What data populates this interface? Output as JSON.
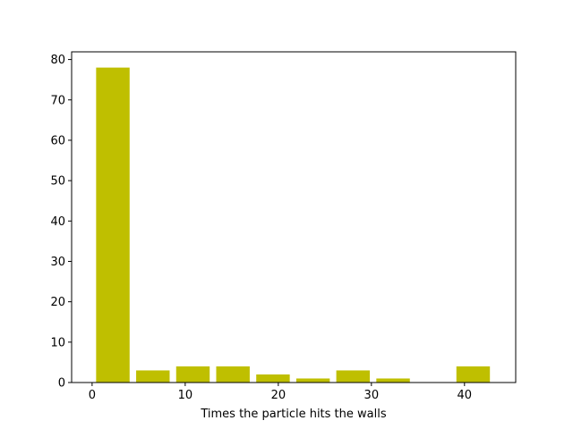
{
  "chart_data": {
    "type": "bar",
    "title": "",
    "xlabel": "Times the particle hits the walls",
    "ylabel": "",
    "xlim": [
      -2.2,
      45.5
    ],
    "ylim": [
      0,
      81.9
    ],
    "xticks": [
      0,
      10,
      20,
      30,
      40
    ],
    "yticks": [
      0,
      10,
      20,
      30,
      40,
      50,
      60,
      70,
      80
    ],
    "bar_color": "#bfbf00",
    "bins": [
      {
        "start": 0.43,
        "end": 4.03,
        "value": 78
      },
      {
        "start": 4.73,
        "end": 8.33,
        "value": 3
      },
      {
        "start": 9.03,
        "end": 12.63,
        "value": 4
      },
      {
        "start": 13.33,
        "end": 16.93,
        "value": 4
      },
      {
        "start": 17.63,
        "end": 21.23,
        "value": 2
      },
      {
        "start": 21.93,
        "end": 25.53,
        "value": 1
      },
      {
        "start": 26.23,
        "end": 29.83,
        "value": 3
      },
      {
        "start": 30.53,
        "end": 34.13,
        "value": 1
      },
      {
        "start": 34.83,
        "end": 38.43,
        "value": 0
      },
      {
        "start": 39.13,
        "end": 42.73,
        "value": 4
      }
    ],
    "grid": false,
    "legend": "none"
  }
}
